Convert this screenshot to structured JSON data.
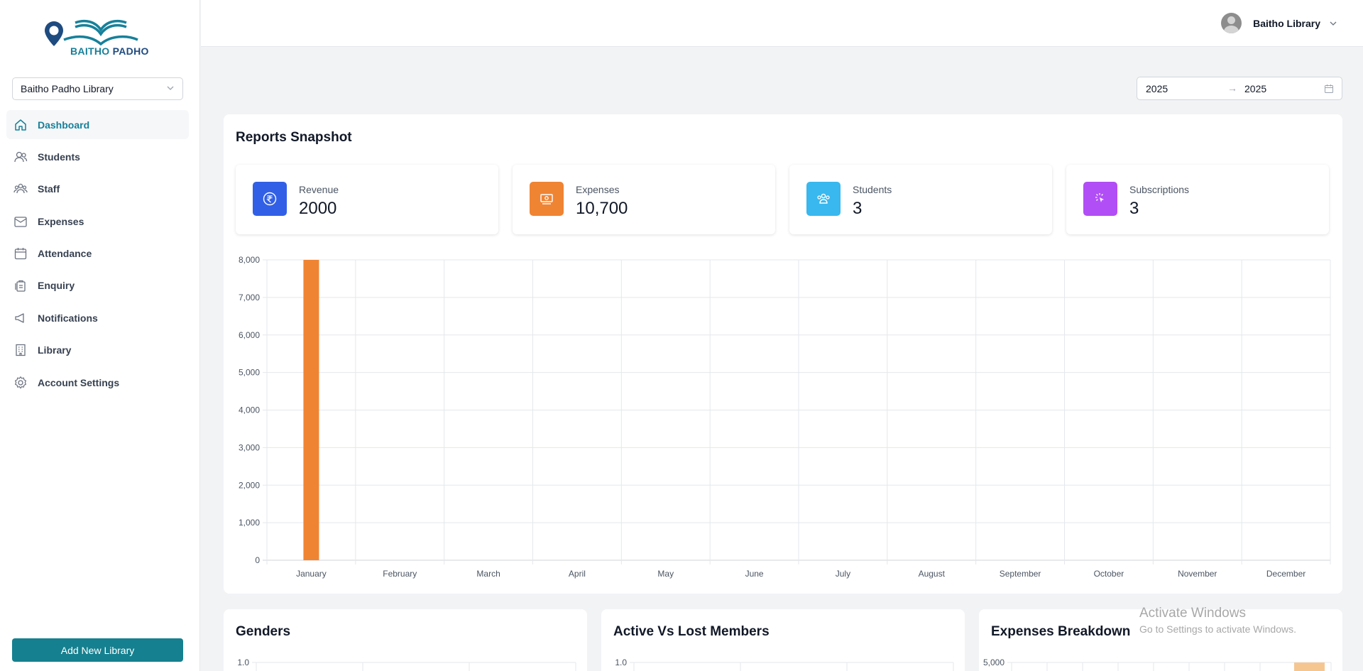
{
  "brand": {
    "part1": "BAITHO",
    "part2": "PADHO",
    "colors": {
      "teal": "#17809a",
      "navy": "#1e4b80",
      "accent": "#15808f"
    }
  },
  "library_select": {
    "value": "Baitho Padho Library"
  },
  "nav": [
    {
      "label": "Dashboard",
      "icon": "home-icon",
      "active": true
    },
    {
      "label": "Students",
      "icon": "users-icon"
    },
    {
      "label": "Staff",
      "icon": "team-icon"
    },
    {
      "label": "Expenses",
      "icon": "wallet-icon"
    },
    {
      "label": "Attendance",
      "icon": "calendar-icon"
    },
    {
      "label": "Enquiry",
      "icon": "clipboard-icon"
    },
    {
      "label": "Notifications",
      "icon": "megaphone-icon"
    },
    {
      "label": "Library",
      "icon": "building-icon"
    },
    {
      "label": "Account Settings",
      "icon": "gear-icon"
    }
  ],
  "add_library_button": "Add New Library",
  "header": {
    "user_name": "Baitho Library"
  },
  "date_range": {
    "from": "2025",
    "to": "2025",
    "separator": "→"
  },
  "reports": {
    "title": "Reports Snapshot",
    "stats": [
      {
        "label": "Revenue",
        "value": "2000",
        "color": "#3160e7",
        "icon": "rupee-icon"
      },
      {
        "label": "Expenses",
        "value": "10,700",
        "color": "#ef8433",
        "icon": "cash-icon"
      },
      {
        "label": "Students",
        "value": "3",
        "color": "#38b8ee",
        "icon": "group-icon"
      },
      {
        "label": "Subscriptions",
        "value": "3",
        "color": "#b14ef5",
        "icon": "cursor-click-icon"
      }
    ]
  },
  "chart_data": [
    {
      "type": "bar",
      "categories": [
        "January",
        "February",
        "March",
        "April",
        "May",
        "June",
        "July",
        "August",
        "September",
        "October",
        "November",
        "December"
      ],
      "series": [
        {
          "values": [
            8000,
            0,
            0,
            0,
            0,
            0,
            0,
            0,
            0,
            0,
            0,
            0
          ],
          "color": "#ef8433"
        }
      ],
      "ylim": [
        0,
        8000
      ],
      "yticks": [
        "0",
        "1,000",
        "2,000",
        "3,000",
        "4,000",
        "5,000",
        "6,000",
        "7,000",
        "8,000"
      ],
      "grid": true
    }
  ],
  "bottom_cards": [
    {
      "title": "Genders",
      "top_tick": "1.0"
    },
    {
      "title": "Active Vs Lost Members",
      "top_tick": "1.0"
    },
    {
      "title": "Expenses Breakdown",
      "top_tick": "5,000"
    }
  ],
  "watermark": {
    "line1": "Activate Windows",
    "line2": "Go to Settings to activate Windows."
  }
}
